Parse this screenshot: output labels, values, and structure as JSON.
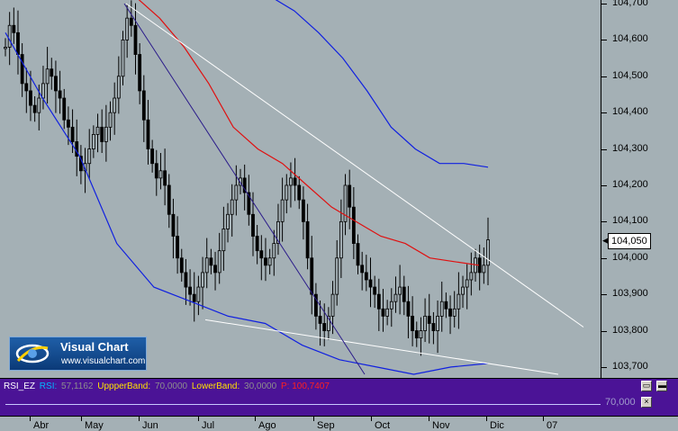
{
  "chart_data": {
    "type": "candlestick",
    "y_range": [
      103.68,
      104.7
    ],
    "price_ticks": [
      "104,700",
      "104,600",
      "104,500",
      "104,400",
      "104,300",
      "104,200",
      "104,100",
      "104,000",
      "103,900",
      "103,800",
      "103,700"
    ],
    "last_price_label": "104,050",
    "months": [
      "Abr",
      "May",
      "Jun",
      "Jul",
      "Ago",
      "Sep",
      "Oct",
      "Nov",
      "Dic",
      "07"
    ],
    "colors": {
      "background": "#a4b0b5",
      "candles": "#000000",
      "moving_average": "#e01010",
      "bands": "#1020e0",
      "trendline_white": "#ffffff",
      "trendline_navy": "#2a1a8a"
    },
    "approx_closes": [
      104.58,
      104.64,
      104.62,
      104.56,
      104.48,
      104.46,
      104.42,
      104.4,
      104.44,
      104.48,
      104.52,
      104.5,
      104.46,
      104.44,
      104.38,
      104.36,
      104.32,
      104.28,
      104.24,
      104.26,
      104.3,
      104.34,
      104.36,
      104.32,
      104.36,
      104.4,
      104.44,
      104.5,
      104.6,
      104.66,
      104.64,
      104.56,
      104.46,
      104.38,
      104.3,
      104.26,
      104.22,
      104.24,
      104.2,
      104.12,
      104.06,
      104.0,
      103.96,
      103.92,
      103.9,
      103.88,
      103.92,
      103.96,
      104.0,
      103.98,
      103.96,
      104.02,
      104.08,
      104.12,
      104.16,
      104.2,
      104.22,
      104.18,
      104.12,
      104.06,
      104.02,
      104.0,
      103.98,
      104.0,
      104.04,
      104.1,
      104.16,
      104.2,
      104.22,
      104.2,
      104.16,
      104.1,
      104.0,
      103.9,
      103.84,
      103.82,
      103.8,
      103.84,
      103.9,
      104.0,
      104.1,
      104.2,
      104.14,
      104.04,
      103.98,
      103.96,
      103.94,
      103.92,
      103.9,
      103.86,
      103.84,
      103.86,
      103.88,
      103.9,
      103.92,
      103.88,
      103.84,
      103.8,
      103.78,
      103.8,
      103.84,
      103.82,
      103.8,
      103.84,
      103.88,
      103.86,
      103.84,
      103.86,
      103.9,
      103.92,
      103.94,
      103.96,
      104.0,
      103.96,
      103.98,
      104.05
    ],
    "ma_points": [
      104.72,
      104.66,
      104.58,
      104.48,
      104.36,
      104.3,
      104.26,
      104.2,
      104.14,
      104.1,
      104.06,
      104.04,
      104.0,
      103.99,
      103.98
    ],
    "upper_band": [
      104.72,
      104.68,
      104.62,
      104.55,
      104.46,
      104.36,
      104.3,
      104.26,
      104.26,
      104.25
    ],
    "lower_band": [
      104.62,
      104.44,
      104.28,
      104.04,
      103.92,
      103.88,
      103.84,
      103.82,
      103.76,
      103.72,
      103.7,
      103.68,
      103.7,
      103.71
    ],
    "indicator": {
      "name": "RSI_EZ",
      "rsi_label": "RSI:",
      "rsi_value": "57,1162",
      "upper_label": "UppperBand:",
      "upper_value": "70,0000",
      "lower_label": "LowerBand:",
      "lower_value": "30,0000",
      "p_label": "P: 100,7407",
      "axis_value": "70,000"
    }
  },
  "window_buttons": {
    "minimize": "▭",
    "restore": "▬",
    "close": "×"
  },
  "logo": {
    "title": "Visual Chart",
    "url": "www.visualchart.com"
  }
}
